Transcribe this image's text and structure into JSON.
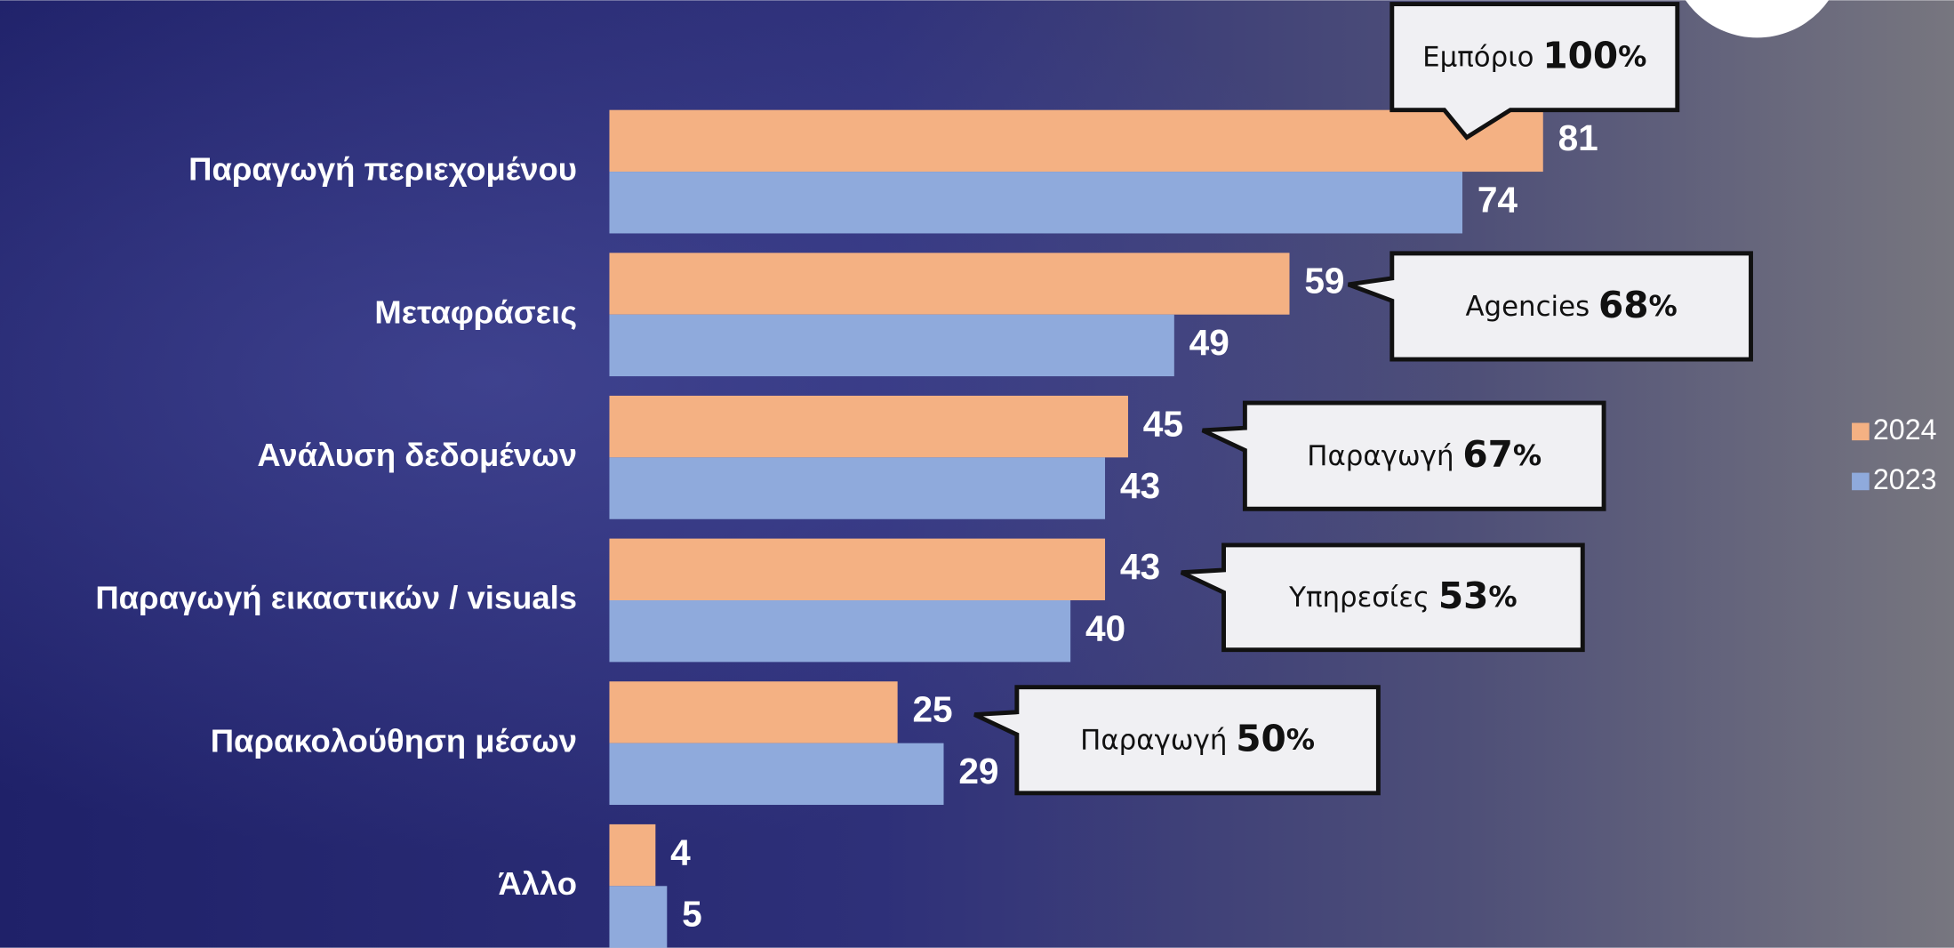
{
  "chart_data": {
    "type": "bar",
    "orientation": "horizontal",
    "categories": [
      "Παραγωγή περιεχομένου",
      "Μεταφράσεις",
      "Ανάλυση δεδομένων",
      "Παραγωγή εικαστικών / visuals",
      "Παρακολούθηση μέσων",
      "Άλλο"
    ],
    "series": [
      {
        "name": "2024",
        "color": "#f4b183",
        "values": [
          81,
          59,
          45,
          43,
          25,
          4
        ]
      },
      {
        "name": "2023",
        "color": "#8faadc",
        "values": [
          74,
          49,
          43,
          40,
          29,
          5
        ]
      }
    ],
    "callouts": [
      {
        "text": "Εμπόριο",
        "value": 100,
        "unit": "%"
      },
      {
        "text": "Agencies",
        "value": 68,
        "unit": "%"
      },
      {
        "text": "Παραγωγή",
        "value": 67,
        "unit": "%"
      },
      {
        "text": "Υπηρεσίες",
        "value": 53,
        "unit": "%"
      },
      {
        "text": "Παραγωγή",
        "value": 50,
        "unit": "%"
      }
    ]
  }
}
